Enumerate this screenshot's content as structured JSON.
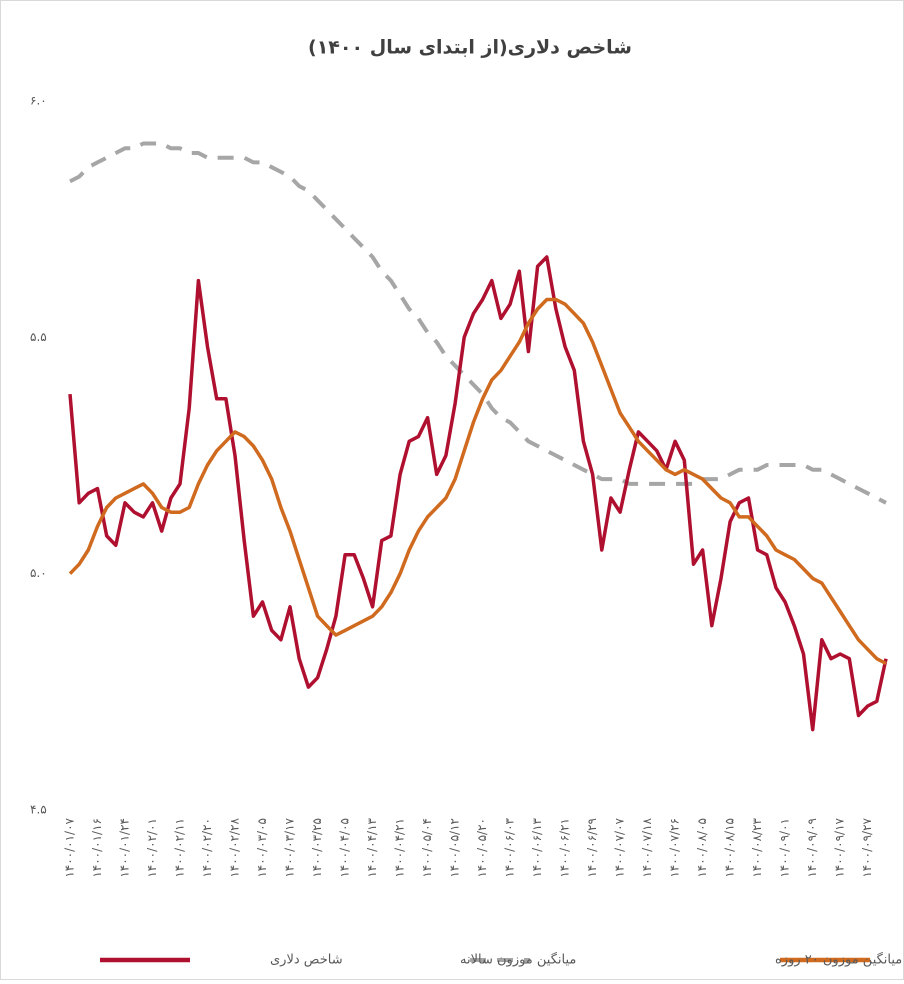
{
  "chart_data": {
    "type": "line",
    "title": "شاخص دلاری(از ابتدای سال ۱۴۰۰)",
    "categories": [
      "۱۴۰۰/۰۱/۰۷",
      null,
      null,
      "۱۴۰۰/۰۱/۱۶",
      null,
      null,
      "۱۴۰۰/۰۱/۲۴",
      null,
      null,
      "۱۴۰۰/۰۲/۰۱",
      null,
      null,
      "۱۴۰۰/۰۲/۱۱",
      null,
      null,
      "۱۴۰۰/۰۲/۲۰",
      null,
      null,
      "۱۴۰۰/۰۲/۲۸",
      null,
      null,
      "۱۴۰۰/۰۳/۰۵",
      null,
      null,
      "۱۴۰۰/۰۳/۱۷",
      null,
      null,
      "۱۴۰۰/۰۳/۲۵",
      null,
      null,
      "۱۴۰۰/۰۴/۰۵",
      null,
      null,
      "۱۴۰۰/۰۴/۱۳",
      null,
      null,
      "۱۴۰۰/۰۴/۲۱",
      null,
      null,
      "۱۴۰۰/۰۵/۰۴",
      null,
      null,
      "۱۴۰۰/۰۵/۱۲",
      null,
      null,
      "۱۴۰۰/۰۵/۲۰",
      null,
      null,
      "۱۴۰۰/۰۶/۰۳",
      null,
      null,
      "۱۴۰۰/۰۶/۱۳",
      null,
      null,
      "۱۴۰۰/۰۶/۲۱",
      null,
      null,
      "۱۴۰۰/۰۶/۲۹",
      null,
      null,
      "۱۴۰۰/۰۷/۰۷",
      null,
      null,
      "۱۴۰۰/۰۷/۱۸",
      null,
      null,
      "۱۴۰۰/۰۷/۲۶",
      null,
      null,
      "۱۴۰۰/۰۸/۰۵",
      null,
      null,
      "۱۴۰۰/۰۸/۱۵",
      null,
      null,
      "۱۴۰۰/۰۸/۲۳",
      null,
      null,
      "۱۴۰۰/۰۹/۰۱",
      null,
      null,
      "۱۴۰۰/۰۹/۰۹",
      null,
      null,
      "۱۴۰۰/۰۹/۱۷",
      null,
      null,
      "۱۴۰۰/۰۹/۲۷",
      null,
      null
    ],
    "series": [
      {
        "name": "شاخص دلاری",
        "color": "#b0102f",
        "dash": false,
        "values": [
          5.38,
          5.15,
          5.17,
          5.18,
          5.08,
          5.06,
          5.15,
          5.13,
          5.12,
          5.15,
          5.09,
          5.16,
          5.19,
          5.35,
          5.62,
          5.48,
          5.37,
          5.37,
          5.25,
          5.07,
          4.91,
          4.94,
          4.88,
          4.86,
          4.93,
          4.82,
          4.76,
          4.78,
          4.84,
          4.91,
          5.04,
          5.04,
          4.99,
          4.93,
          5.07,
          5.08,
          5.21,
          5.28,
          5.29,
          5.33,
          5.21,
          5.25,
          5.36,
          5.5,
          5.55,
          5.58,
          5.62,
          5.54,
          5.57,
          5.64,
          5.47,
          5.65,
          5.67,
          5.56,
          5.48,
          5.43,
          5.28,
          5.21,
          5.05,
          5.16,
          5.13,
          5.22,
          5.3,
          5.28,
          5.26,
          5.22,
          5.28,
          5.24,
          5.02,
          5.05,
          4.89,
          4.99,
          5.11,
          5.15,
          5.16,
          5.05,
          5.04,
          4.97,
          4.94,
          4.89,
          4.83,
          4.67,
          4.86,
          4.82,
          4.83,
          4.82,
          4.7,
          4.72,
          4.73,
          4.82
        ]
      },
      {
        "name": "میانگین موزون سالانه",
        "color": "#a6a6a6",
        "dash": true,
        "values": [
          5.83,
          5.84,
          5.86,
          5.87,
          5.88,
          5.89,
          5.9,
          5.9,
          5.91,
          5.91,
          5.91,
          5.9,
          5.9,
          5.89,
          5.89,
          5.88,
          5.88,
          5.88,
          5.88,
          5.88,
          5.87,
          5.87,
          5.86,
          5.85,
          5.84,
          5.82,
          5.81,
          5.79,
          5.77,
          5.75,
          5.73,
          5.71,
          5.69,
          5.67,
          5.64,
          5.62,
          5.59,
          5.56,
          5.54,
          5.51,
          5.49,
          5.46,
          5.44,
          5.42,
          5.4,
          5.38,
          5.35,
          5.33,
          5.32,
          5.3,
          5.28,
          5.27,
          5.26,
          5.25,
          5.24,
          5.23,
          5.22,
          5.21,
          5.2,
          5.2,
          5.2,
          5.19,
          5.19,
          5.19,
          5.19,
          5.19,
          5.19,
          5.19,
          5.19,
          5.2,
          5.2,
          5.2,
          5.21,
          5.22,
          5.22,
          5.22,
          5.23,
          5.23,
          5.23,
          5.23,
          5.23,
          5.22,
          5.22,
          5.21,
          5.2,
          5.19,
          5.18,
          5.17,
          5.16,
          5.15
        ]
      },
      {
        "name": "میانگین موزون ۲۰ روزه",
        "color": "#cf6a1f",
        "dash": false,
        "values": [
          5.0,
          5.02,
          5.05,
          5.1,
          5.14,
          5.16,
          5.17,
          5.18,
          5.19,
          5.17,
          5.14,
          5.13,
          5.13,
          5.14,
          5.19,
          5.23,
          5.26,
          5.28,
          5.3,
          5.29,
          5.27,
          5.24,
          5.2,
          5.14,
          5.09,
          5.03,
          4.97,
          4.91,
          4.89,
          4.87,
          4.88,
          4.89,
          4.9,
          4.91,
          4.93,
          4.96,
          5.0,
          5.05,
          5.09,
          5.12,
          5.14,
          5.16,
          5.2,
          5.26,
          5.32,
          5.37,
          5.41,
          5.43,
          5.46,
          5.49,
          5.53,
          5.56,
          5.58,
          5.58,
          5.57,
          5.55,
          5.53,
          5.49,
          5.44,
          5.39,
          5.34,
          5.31,
          5.28,
          5.26,
          5.24,
          5.22,
          5.21,
          5.22,
          5.21,
          5.2,
          5.18,
          5.16,
          5.15,
          5.12,
          5.12,
          5.1,
          5.08,
          5.05,
          5.04,
          5.03,
          5.01,
          4.99,
          4.98,
          4.95,
          4.92,
          4.89,
          4.86,
          4.84,
          4.82,
          4.81
        ]
      }
    ],
    "ylim": [
      4.5,
      6.0
    ],
    "yticks": [
      {
        "value": 4.5,
        "label": "۴.۵"
      },
      {
        "value": 5.0,
        "label": "۵.۰"
      },
      {
        "value": 5.5,
        "label": "۵.۵"
      },
      {
        "value": 6.0,
        "label": "۶.۰"
      }
    ],
    "grid": false
  }
}
